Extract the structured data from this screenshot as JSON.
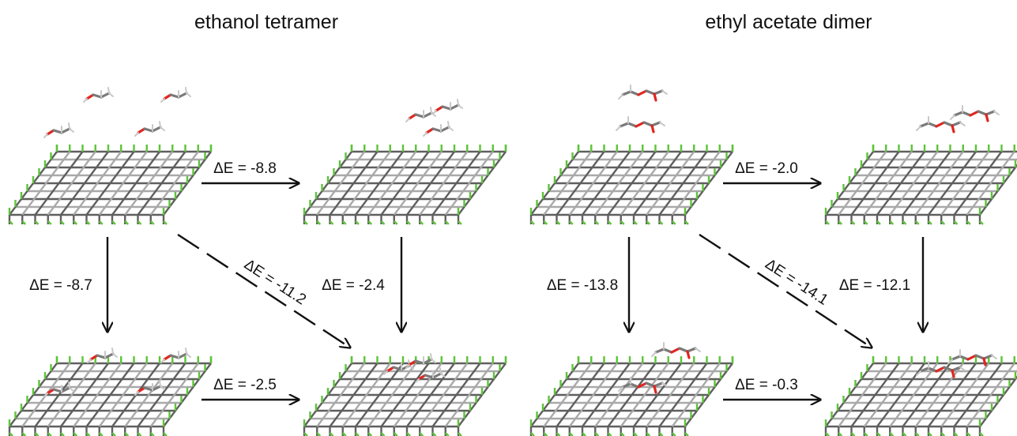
{
  "panels": [
    {
      "title": "ethanol tetramer",
      "molecule": "ethanol",
      "edges": [
        {
          "label": "ΔE = -8.8"
        },
        {
          "label": "ΔE = -8.7"
        },
        {
          "label": "ΔE = -11.2"
        },
        {
          "label": "ΔE = -2.4"
        },
        {
          "label": "ΔE = -2.5"
        }
      ]
    },
    {
      "title": "ethyl acetate dimer",
      "molecule": "ethyl acetate",
      "edges": [
        {
          "label": "ΔE = -2.0"
        },
        {
          "label": "ΔE = -13.8"
        },
        {
          "label": "ΔE = -14.1"
        },
        {
          "label": "ΔE = -12.1"
        },
        {
          "label": "ΔE = -0.3"
        }
      ]
    }
  ],
  "colors": {
    "surface_dark": "#5f5f5f",
    "surface_light": "#a9a9a9",
    "surface_edge_atom": "#5cc437",
    "oxygen": "#e0261f",
    "carbon": "#7a7a7a",
    "hydrogen": "#c8c8c8",
    "arrow": "#111111"
  },
  "icons": [
    "surface-slab-icon",
    "ethanol-molecule-icon",
    "ethyl-acetate-molecule-icon",
    "arrow-icon"
  ]
}
